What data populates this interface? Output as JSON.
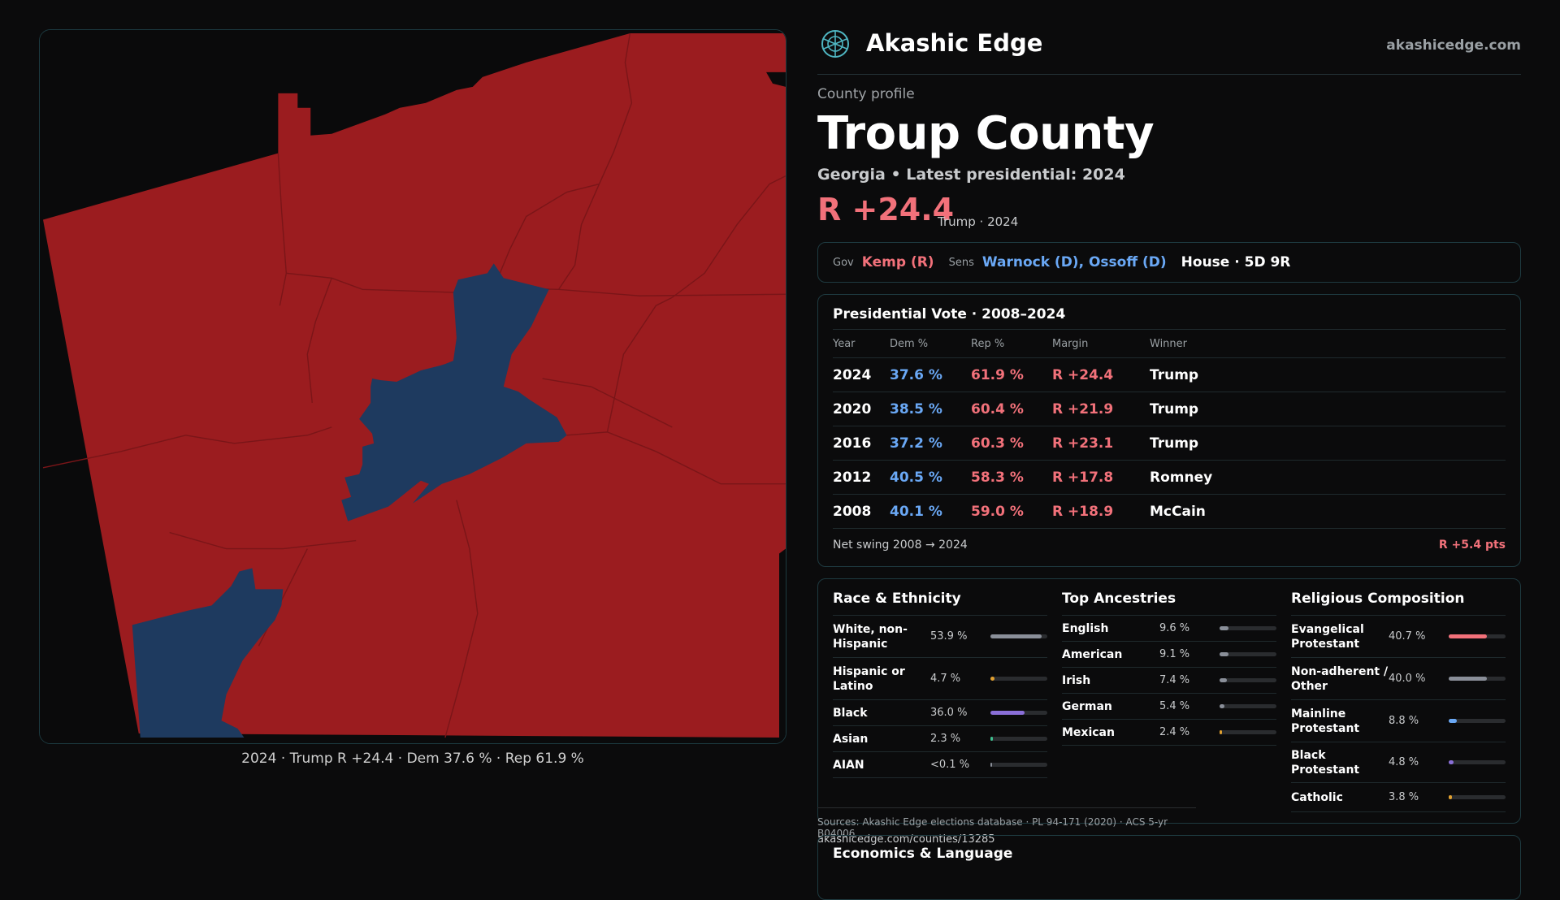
{
  "map": {
    "caption": "2024 · Trump R +24.4 · Dem 37.6 % · Rep 61.9 %",
    "colors": {
      "republican": "#9b1c1f",
      "democratic": "#1e3a5f",
      "precinct_border": "#7a1518"
    }
  },
  "brand": {
    "name": "Akashic Edge",
    "url": "akashicedge.com",
    "logo_icon": "globe-logo-icon"
  },
  "profile": {
    "kicker": "County profile",
    "title": "Troup County",
    "subtitle": "Georgia • Latest presidential: 2024",
    "margin": "R +24.4",
    "margin_note": "Trump · 2024"
  },
  "officials": {
    "gov_label": "Gov",
    "gov": "Kemp (R)",
    "sens_label": "Sens",
    "sens": "Warnock (D), Ossoff (D)",
    "house": "House · 5D 9R"
  },
  "presidential": {
    "title": "Presidential Vote · 2008–2024",
    "headers": {
      "year": "Year",
      "dem": "Dem %",
      "rep": "Rep %",
      "margin": "Margin",
      "winner": "Winner"
    },
    "rows": [
      {
        "year": "2024",
        "dem": "37.6 %",
        "rep": "61.9 %",
        "margin": "R +24.4",
        "winner": "Trump"
      },
      {
        "year": "2020",
        "dem": "38.5 %",
        "rep": "60.4 %",
        "margin": "R +21.9",
        "winner": "Trump"
      },
      {
        "year": "2016",
        "dem": "37.2 %",
        "rep": "60.3 %",
        "margin": "R +23.1",
        "winner": "Trump"
      },
      {
        "year": "2012",
        "dem": "40.5 %",
        "rep": "58.3 %",
        "margin": "R +17.8",
        "winner": "Romney"
      },
      {
        "year": "2008",
        "dem": "40.1 %",
        "rep": "59.0 %",
        "margin": "R +18.9",
        "winner": "McCain"
      }
    ],
    "swing_label": "Net swing 2008 → 2024",
    "swing_value": "R +5.4 pts"
  },
  "demographics": {
    "race": {
      "title": "Race & Ethnicity",
      "items": [
        {
          "label": "White, non-Hispanic",
          "value": "53.9 %",
          "fraction": 0.539,
          "color": "#8a8f99"
        },
        {
          "label": "Hispanic or Latino",
          "value": "4.7 %",
          "fraction": 0.047,
          "color": "#e0a030"
        },
        {
          "label": "Black",
          "value": "36.0 %",
          "fraction": 0.36,
          "color": "#8a6fd8"
        },
        {
          "label": "Asian",
          "value": "2.3 %",
          "fraction": 0.023,
          "color": "#3fbf8f"
        },
        {
          "label": "AIAN",
          "value": "<0.1 %",
          "fraction": 0.001,
          "color": "#8a8f99"
        }
      ]
    },
    "ancestry": {
      "title": "Top Ancestries",
      "items": [
        {
          "label": "English",
          "value": "9.6 %",
          "fraction": 0.096,
          "color": "#8a8f99"
        },
        {
          "label": "American",
          "value": "9.1 %",
          "fraction": 0.091,
          "color": "#8a8f99"
        },
        {
          "label": "Irish",
          "value": "7.4 %",
          "fraction": 0.074,
          "color": "#8a8f99"
        },
        {
          "label": "German",
          "value": "5.4 %",
          "fraction": 0.054,
          "color": "#8a8f99"
        },
        {
          "label": "Mexican",
          "value": "2.4 %",
          "fraction": 0.024,
          "color": "#e0a030"
        }
      ]
    },
    "religion": {
      "title": "Religious Composition",
      "items": [
        {
          "label": "Evangelical Protestant",
          "value": "40.7 %",
          "fraction": 0.407,
          "color": "#f2717a"
        },
        {
          "label": "Non-adherent / Other",
          "value": "40.0 %",
          "fraction": 0.4,
          "color": "#8a8f99"
        },
        {
          "label": "Mainline Protestant",
          "value": "8.8 %",
          "fraction": 0.088,
          "color": "#6aa8f5"
        },
        {
          "label": "Black Protestant",
          "value": "4.8 %",
          "fraction": 0.048,
          "color": "#8a6fd8"
        },
        {
          "label": "Catholic",
          "value": "3.8 %",
          "fraction": 0.038,
          "color": "#e0a030"
        }
      ]
    }
  },
  "sources": {
    "text": "Sources: Akashic Edge elections database · PL 94-171 (2020) · ACS 5-yr B04006",
    "url": "akashicedge.com/counties/13285"
  },
  "economics": {
    "title": "Economics & Language"
  }
}
